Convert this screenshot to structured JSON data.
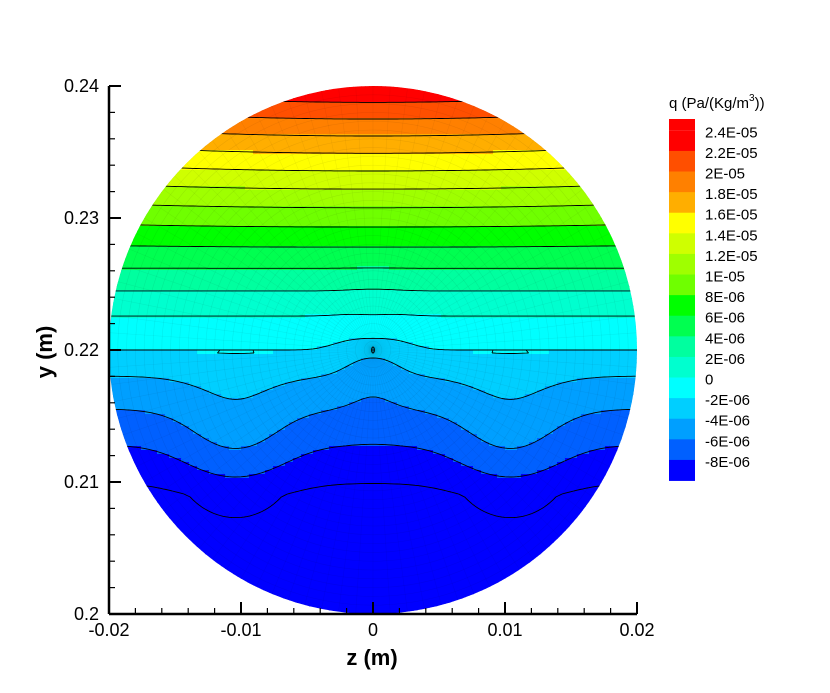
{
  "chart_data": {
    "type": "contour",
    "title": "",
    "xlabel": "z  (m)",
    "ylabel": "y  (m)",
    "xlim": [
      -0.02,
      0.02
    ],
    "ylim": [
      0.2,
      0.24
    ],
    "x_ticks": [
      -0.02,
      -0.01,
      0,
      0.01,
      0.02
    ],
    "x_tick_labels": [
      "-0.02",
      "-0.01",
      "0",
      "0.01",
      "0.02"
    ],
    "y_ticks": [
      0.2,
      0.21,
      0.22,
      0.23,
      0.24
    ],
    "y_tick_labels": [
      "0.2",
      "0.21",
      "0.22",
      "0.23",
      "0.24"
    ],
    "domain": {
      "shape": "circle",
      "center_z": 0,
      "center_y": 0.22,
      "radius": 0.02
    },
    "legend": {
      "title_main": "q  (Pa/(Kg/m",
      "title_sup": "3",
      "title_end": "))",
      "placement": "right",
      "levels": [
        {
          "label": "2.4E-05",
          "value": 2.4e-05,
          "color": "#ff0000"
        },
        {
          "label": "2.2E-05",
          "value": 2.2e-05,
          "color": "#ff4f00"
        },
        {
          "label": "2E-05",
          "value": 2e-05,
          "color": "#ff8000"
        },
        {
          "label": "1.8E-05",
          "value": 1.8e-05,
          "color": "#ffae00"
        },
        {
          "label": "1.6E-05",
          "value": 1.6e-05,
          "color": "#ffff00"
        },
        {
          "label": "1.4E-05",
          "value": 1.4e-05,
          "color": "#cfff00"
        },
        {
          "label": "1.2E-05",
          "value": 1.2e-05,
          "color": "#9fff00"
        },
        {
          "label": "1E-05",
          "value": 1e-05,
          "color": "#6fff00"
        },
        {
          "label": "8E-06",
          "value": 8e-06,
          "color": "#00ff00"
        },
        {
          "label": "6E-06",
          "value": 6e-06,
          "color": "#00ff50"
        },
        {
          "label": "4E-06",
          "value": 4e-06,
          "color": "#00ff9f"
        },
        {
          "label": "2E-06",
          "value": 2e-06,
          "color": "#00ffcf"
        },
        {
          "label": "0",
          "value": 0,
          "color": "#00ffff"
        },
        {
          "label": "-2E-06",
          "value": -2e-06,
          "color": "#00cfff"
        },
        {
          "label": "-4E-06",
          "value": -4e-06,
          "color": "#009fff"
        },
        {
          "label": "-6E-06",
          "value": -6e-06,
          "color": "#0060ff"
        },
        {
          "label": "-8E-06",
          "value": -8e-06,
          "color": "#0000ff"
        }
      ],
      "top_color": "#ff0000",
      "bottom_color": "#0000ff"
    }
  }
}
